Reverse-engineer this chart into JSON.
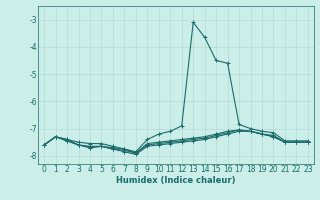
{
  "xlabel": "Humidex (Indice chaleur)",
  "background_color": "#cceee8",
  "grid_color": "#b8ddd8",
  "line_color": "#1a6b6b",
  "xlim": [
    -0.5,
    23.5
  ],
  "ylim": [
    -8.3,
    -2.5
  ],
  "xticks": [
    0,
    1,
    2,
    3,
    4,
    5,
    6,
    7,
    8,
    9,
    10,
    11,
    12,
    13,
    14,
    15,
    16,
    17,
    18,
    19,
    20,
    21,
    22,
    23
  ],
  "yticks": [
    -8,
    -7,
    -6,
    -5,
    -4,
    -3
  ],
  "series": [
    {
      "x": [
        0,
        1,
        2,
        3,
        4,
        5,
        6,
        7,
        8,
        9,
        10,
        11,
        12,
        13,
        14,
        15,
        16,
        17,
        18,
        19,
        20,
        21,
        22,
        23
      ],
      "y": [
        -7.6,
        -7.3,
        -7.4,
        -7.5,
        -7.55,
        -7.55,
        -7.65,
        -7.75,
        -7.85,
        -7.4,
        -7.2,
        -7.1,
        -6.9,
        -3.1,
        -3.65,
        -4.5,
        -4.6,
        -6.85,
        -7.0,
        -7.1,
        -7.15,
        -7.45,
        -7.45,
        -7.45
      ]
    },
    {
      "x": [
        0,
        1,
        2,
        3,
        4,
        5,
        6,
        7,
        8,
        9,
        10,
        11,
        12,
        13,
        14,
        15,
        16,
        17,
        18,
        19,
        20,
        21,
        22,
        23
      ],
      "y": [
        -7.6,
        -7.3,
        -7.4,
        -7.6,
        -7.65,
        -7.65,
        -7.7,
        -7.75,
        -7.9,
        -7.55,
        -7.5,
        -7.45,
        -7.4,
        -7.35,
        -7.3,
        -7.2,
        -7.1,
        -7.05,
        -7.1,
        -7.2,
        -7.25,
        -7.5,
        -7.5,
        -7.5
      ]
    },
    {
      "x": [
        0,
        1,
        2,
        3,
        4,
        5,
        6,
        7,
        8,
        9,
        10,
        11,
        12,
        13,
        14,
        15,
        16,
        17,
        18,
        19,
        20,
        21,
        22,
        23
      ],
      "y": [
        -7.6,
        -7.3,
        -7.45,
        -7.6,
        -7.7,
        -7.65,
        -7.75,
        -7.8,
        -7.9,
        -7.6,
        -7.55,
        -7.5,
        -7.45,
        -7.4,
        -7.35,
        -7.25,
        -7.15,
        -7.05,
        -7.1,
        -7.2,
        -7.3,
        -7.5,
        -7.5,
        -7.5
      ]
    },
    {
      "x": [
        0,
        1,
        2,
        3,
        4,
        5,
        6,
        7,
        8,
        9,
        10,
        11,
        12,
        13,
        14,
        15,
        16,
        17,
        18,
        19,
        20,
        21,
        22,
        23
      ],
      "y": [
        -7.6,
        -7.3,
        -7.45,
        -7.6,
        -7.7,
        -7.65,
        -7.75,
        -7.85,
        -7.95,
        -7.65,
        -7.6,
        -7.55,
        -7.5,
        -7.45,
        -7.4,
        -7.3,
        -7.2,
        -7.1,
        -7.1,
        -7.2,
        -7.3,
        -7.5,
        -7.5,
        -7.5
      ]
    }
  ]
}
